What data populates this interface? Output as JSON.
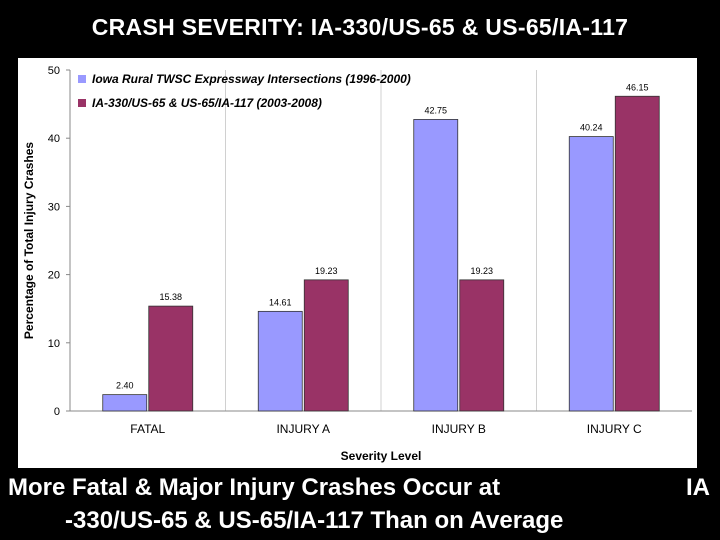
{
  "slide": {
    "title": "CRASH SEVERITY: IA-330/US-65 & US-65/IA-117",
    "caption_line1": "More Fatal & Major Injury Crashes Occur at",
    "caption_line1_end": "IA",
    "caption_line2": "-330/US-65 & US-65/IA-117 Than on Average"
  },
  "colors": {
    "background": "#000000",
    "series1": "#9999ff",
    "series2": "#993366"
  },
  "chart_data": {
    "type": "bar",
    "title": "",
    "xlabel": "Severity Level",
    "ylabel": "Percentage of Total Injury Crashes",
    "ylim": [
      0,
      50
    ],
    "yticks": [
      0,
      10,
      20,
      30,
      40,
      50
    ],
    "categories": [
      "FATAL",
      "INJURY A",
      "INJURY B",
      "INJURY C"
    ],
    "legend_position": "top-left",
    "series": [
      {
        "name": "Iowa Rural TWSC Expressway Intersections (1996-2000)",
        "values": [
          2.4,
          14.61,
          42.75,
          40.24
        ],
        "labels": [
          "2.40",
          "14.61",
          "42.75",
          "40.24"
        ]
      },
      {
        "name": "IA-330/US-65 & US-65/IA-117 (2003-2008)",
        "values": [
          15.38,
          19.23,
          19.23,
          46.15
        ],
        "labels": [
          "15.38",
          "19.23",
          "19.23",
          "46.15"
        ]
      }
    ]
  }
}
